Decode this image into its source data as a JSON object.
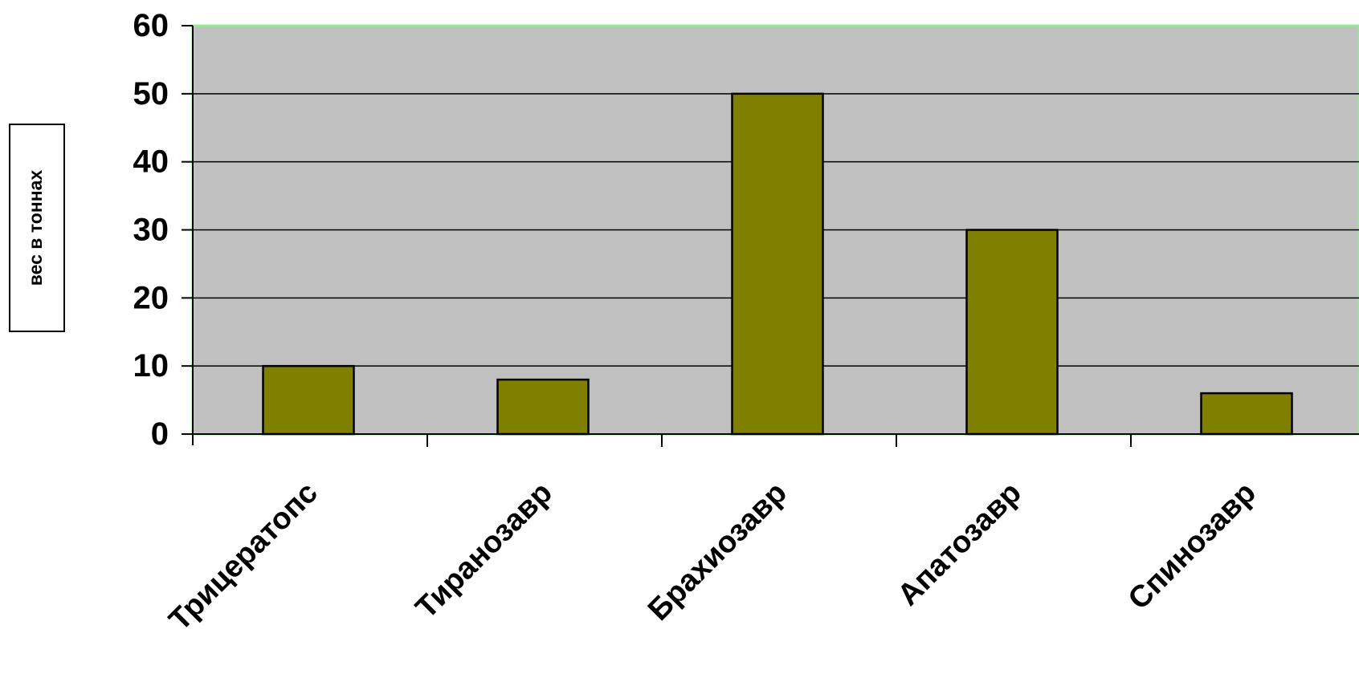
{
  "chart_data": {
    "type": "bar",
    "title": "",
    "xlabel": "",
    "ylabel": "вес в тоннах",
    "categories": [
      "Трицератопс",
      "Тиранозавр",
      "Брахиозавр",
      "Апатозавр",
      "Спинозавр"
    ],
    "values": [
      10,
      8,
      50,
      30,
      6
    ],
    "ylim": [
      0,
      60
    ],
    "yticks": [
      0,
      10,
      20,
      30,
      40,
      50,
      60
    ],
    "grid": true,
    "legend": "none",
    "colors": {
      "bar": "#808000",
      "plot_background": "#c0c0c0",
      "plot_border": "#90ee90",
      "gridline": "#000000"
    }
  }
}
